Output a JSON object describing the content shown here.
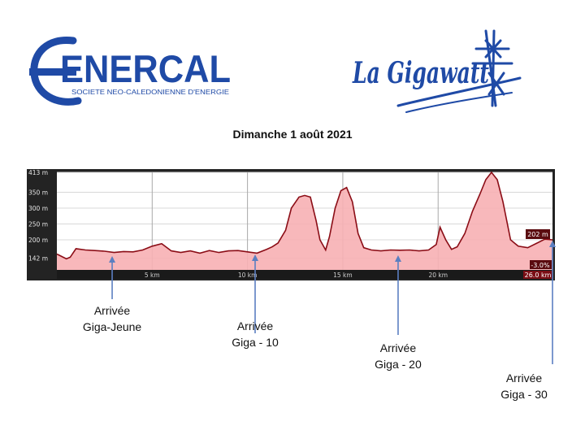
{
  "header": {
    "left_logo": {
      "wordmark": "ENERCAL",
      "tagline": "SOCIETE NEO-CALEDONIENNE D'ENERGIE",
      "color": "#1f4aa6"
    },
    "right_logo": {
      "wordmark": "La Gigawatt",
      "icon": "power-pylon-icon",
      "color": "#1f4aa6"
    }
  },
  "date_label": "Dimanche 1 août 2021",
  "chart_data": {
    "type": "area",
    "title": "",
    "xlabel": "",
    "ylabel": "",
    "x_unit": "km",
    "y_unit": "m",
    "xlim": [
      0,
      26.0
    ],
    "ylim": [
      105,
      413
    ],
    "y_ticks": [
      142,
      200,
      250,
      300,
      350,
      413
    ],
    "y_tick_labels": [
      "142 m",
      "200 m",
      "250 m",
      "300 m",
      "350 m",
      "413 m"
    ],
    "x_ticks": [
      5,
      10,
      15,
      20
    ],
    "x_tick_labels": [
      "5 km",
      "10 km",
      "15 km",
      "20 km"
    ],
    "x_end_label": "26.0 km",
    "grid": true,
    "fill_color": "#f7b0b4",
    "line_color": "#8b0d16",
    "readout_elevation": "202 m",
    "readout_grade": "-3.0%",
    "series": [
      {
        "x": [
          0,
          0.5,
          0.7,
          1.0,
          1.5,
          2.0,
          2.5,
          3.0,
          3.5,
          4.0,
          4.5,
          5.0,
          5.5,
          6.0,
          6.5,
          7.0,
          7.5,
          8.0,
          8.5,
          9.0,
          9.5,
          10.0,
          10.5,
          11.0,
          11.3,
          11.6,
          12.0,
          12.3,
          12.7,
          13.0,
          13.3,
          13.6,
          13.8,
          14.1,
          14.3,
          14.6,
          14.9,
          15.2,
          15.5,
          15.8,
          16.1,
          16.5,
          17.0,
          17.5,
          18.0,
          18.5,
          19.0,
          19.5,
          19.9,
          20.1,
          20.4,
          20.7,
          21.0,
          21.4,
          21.8,
          22.2,
          22.5,
          22.8,
          23.1,
          23.4,
          23.8,
          24.2,
          24.7,
          25.2,
          25.6,
          26.0
        ],
        "y": [
          155,
          140,
          145,
          172,
          168,
          166,
          164,
          160,
          163,
          162,
          168,
          180,
          188,
          165,
          160,
          165,
          158,
          166,
          160,
          165,
          166,
          162,
          158,
          170,
          178,
          190,
          230,
          300,
          335,
          340,
          335,
          260,
          200,
          168,
          210,
          300,
          355,
          365,
          320,
          220,
          175,
          168,
          165,
          168,
          167,
          168,
          165,
          168,
          185,
          240,
          200,
          170,
          178,
          220,
          290,
          345,
          390,
          413,
          390,
          320,
          200,
          180,
          175,
          190,
          202,
          200
        ]
      }
    ],
    "annotations": [
      {
        "line1": "Arrivée",
        "line2": "Giga-Jeune",
        "x_km": 2.9
      },
      {
        "line1": "Arrivée",
        "line2": "Giga - 10",
        "x_km": 10.4
      },
      {
        "line1": "Arrivée",
        "line2": "Giga - 20",
        "x_km": 17.9
      },
      {
        "line1": "Arrivée",
        "line2": "Giga - 30",
        "x_km": 26.0
      }
    ],
    "arrow_color": "#5b7fc1"
  }
}
